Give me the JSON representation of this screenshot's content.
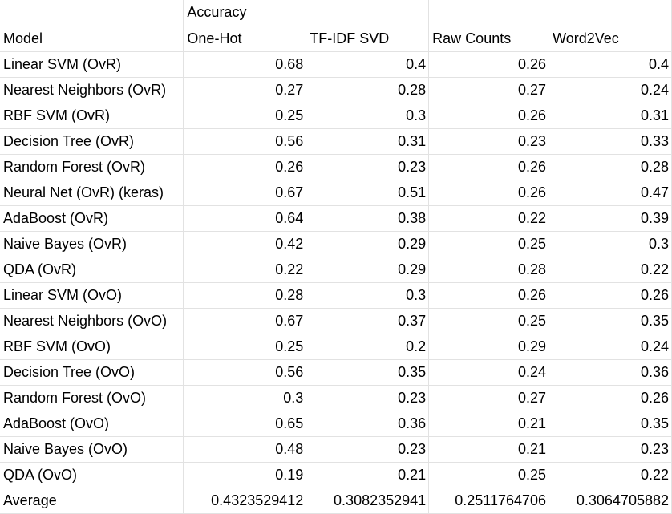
{
  "header_row": [
    "",
    "Accuracy",
    "",
    "",
    ""
  ],
  "columns": [
    "Model",
    "One-Hot",
    "TF-IDF SVD",
    "Raw Counts",
    "Word2Vec"
  ],
  "rows": [
    [
      "Linear SVM (OvR)",
      "0.68",
      "0.4",
      "0.26",
      "0.4"
    ],
    [
      "Nearest Neighbors (OvR)",
      "0.27",
      "0.28",
      "0.27",
      "0.24"
    ],
    [
      "RBF SVM (OvR)",
      "0.25",
      "0.3",
      "0.26",
      "0.31"
    ],
    [
      "Decision Tree (OvR)",
      "0.56",
      "0.31",
      "0.23",
      "0.33"
    ],
    [
      "Random Forest (OvR)",
      "0.26",
      "0.23",
      "0.26",
      "0.28"
    ],
    [
      "Neural Net (OvR) (keras)",
      "0.67",
      "0.51",
      "0.26",
      "0.47"
    ],
    [
      "AdaBoost (OvR)",
      "0.64",
      "0.38",
      "0.22",
      "0.39"
    ],
    [
      "Naive Bayes (OvR)",
      "0.42",
      "0.29",
      "0.25",
      "0.3"
    ],
    [
      "QDA (OvR)",
      "0.22",
      "0.29",
      "0.28",
      "0.22"
    ],
    [
      "Linear SVM (OvO)",
      "0.28",
      "0.3",
      "0.26",
      "0.26"
    ],
    [
      "Nearest Neighbors (OvO)",
      "0.67",
      "0.37",
      "0.25",
      "0.35"
    ],
    [
      "RBF SVM (OvO)",
      "0.25",
      "0.2",
      "0.29",
      "0.24"
    ],
    [
      "Decision Tree (OvO)",
      "0.56",
      "0.35",
      "0.24",
      "0.36"
    ],
    [
      "Random Forest (OvO)",
      "0.3",
      "0.23",
      "0.27",
      "0.26"
    ],
    [
      "AdaBoost (OvO)",
      "0.65",
      "0.36",
      "0.21",
      "0.35"
    ],
    [
      "Naive Bayes (OvO)",
      "0.48",
      "0.23",
      "0.21",
      "0.23"
    ],
    [
      "QDA (OvO)",
      "0.19",
      "0.21",
      "0.25",
      "0.22"
    ],
    [
      "Average",
      "0.4323529412",
      "0.3082352941",
      "0.2511764706",
      "0.3064705882"
    ]
  ],
  "colors": {
    "gridline": "#e2e2e2",
    "background": "#ffffff",
    "text": "#000000"
  }
}
